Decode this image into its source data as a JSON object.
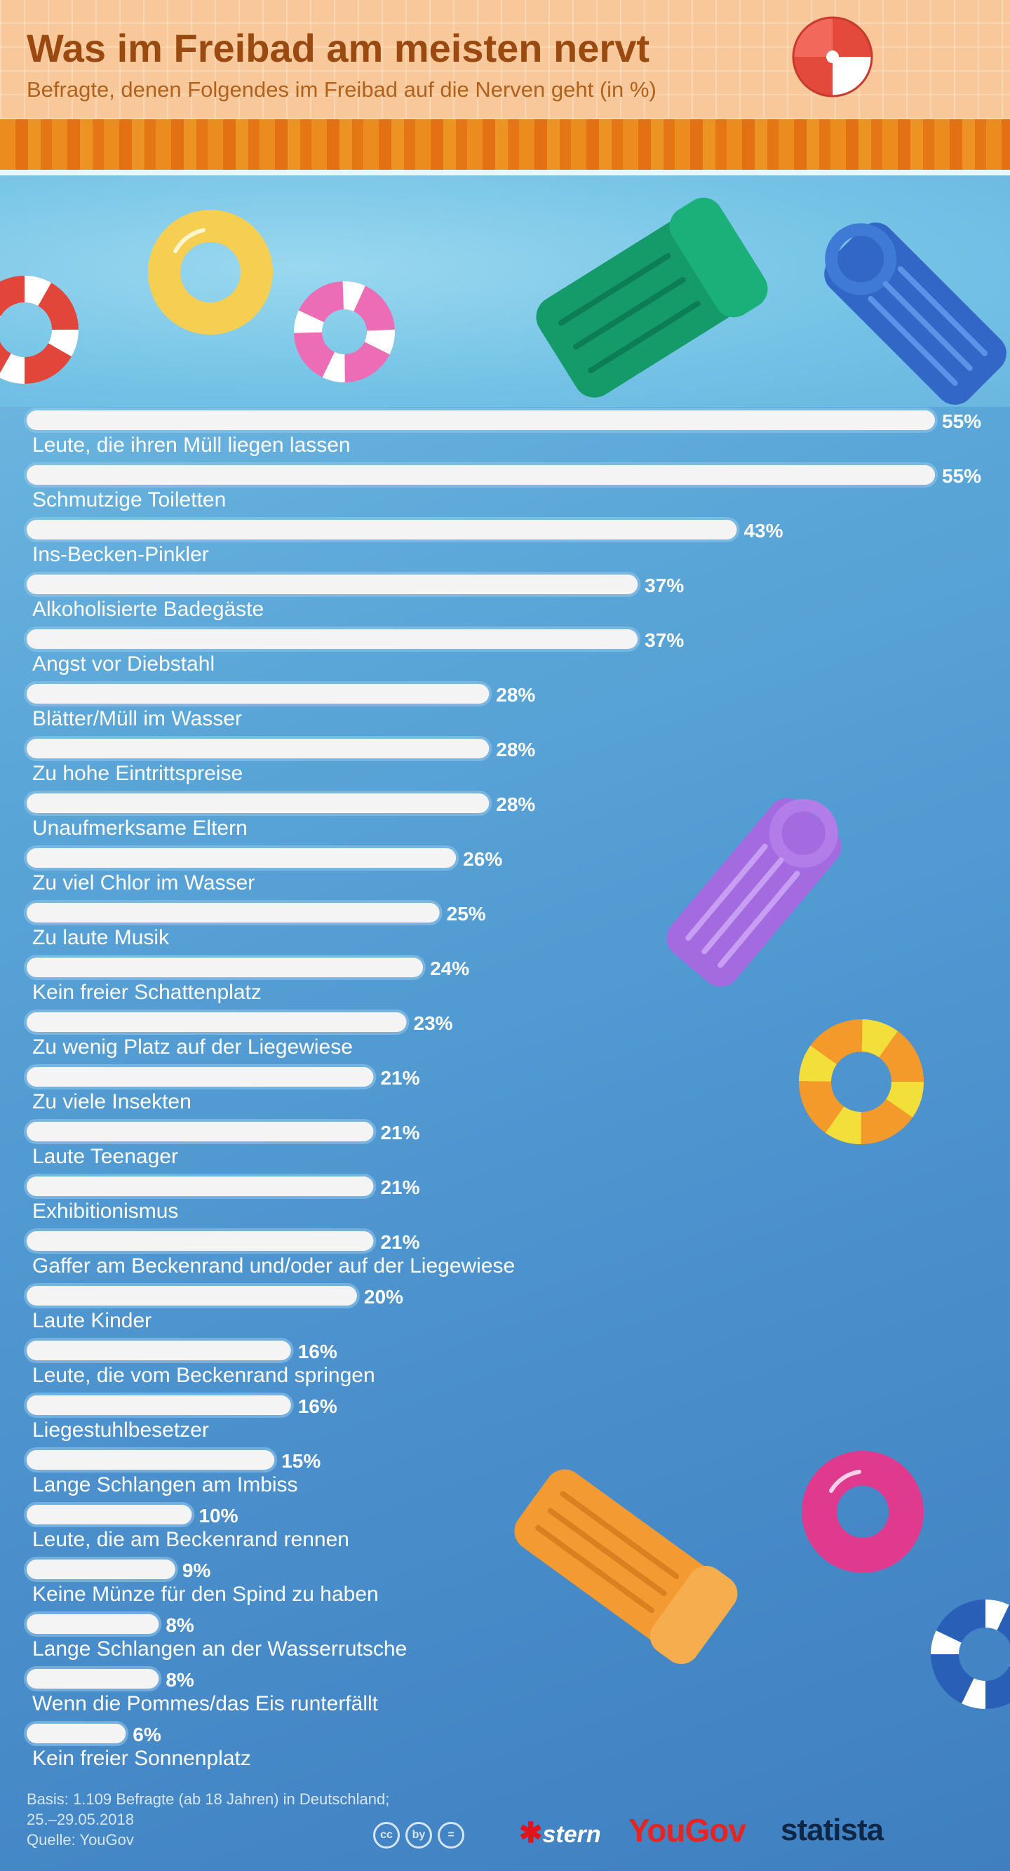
{
  "header": {
    "title": "Was im Freibad am meisten nervt",
    "subtitle": "Befragte, denen Folgendes im Freibad auf die Nerven geht (in %)"
  },
  "chart_data": {
    "type": "bar",
    "orientation": "horizontal",
    "title": "Was im Freibad am meisten nervt",
    "subtitle": "Befragte, denen Folgendes im Freibad auf die Nerven geht (in %)",
    "categories": [
      "Leute, die ihren Müll liegen lassen",
      "Schmutzige Toiletten",
      "Ins-Becken-Pinkler",
      "Alkoholisierte Badegäste",
      "Angst vor Diebstahl",
      "Blätter/Müll im Wasser",
      "Zu hohe Eintrittspreise",
      "Unaufmerksame Eltern",
      "Zu viel Chlor im Wasser",
      "Zu laute Musik",
      "Kein freier Schattenplatz",
      "Zu wenig Platz auf der Liegewiese",
      "Zu viele Insekten",
      "Laute Teenager",
      "Exhibitionismus",
      "Gaffer am Beckenrand und/oder auf der Liegewiese",
      "Laute Kinder",
      "Leute, die vom Beckenrand springen",
      "Liegestuhlbesetzer",
      "Lange Schlangen am Imbiss",
      "Leute, die am Beckenrand rennen",
      "Keine Münze für den Spind zu haben",
      "Lange Schlangen an der Wasserrutsche",
      "Wenn die Pommes/das Eis runterfällt",
      "Kein freier Sonnenplatz"
    ],
    "values": [
      55,
      55,
      43,
      37,
      37,
      28,
      28,
      28,
      26,
      25,
      24,
      23,
      21,
      21,
      21,
      21,
      20,
      16,
      16,
      15,
      10,
      9,
      8,
      8,
      6
    ],
    "value_labels": [
      "55%",
      "55%",
      "43%",
      "37%",
      "37%",
      "28%",
      "28%",
      "28%",
      "26%",
      "25%",
      "24%",
      "23%",
      "21%",
      "21%",
      "21%",
      "21%",
      "20%",
      "16%",
      "16%",
      "15%",
      "10%",
      "9%",
      "8%",
      "8%",
      "6%"
    ],
    "unit": "%",
    "xlim": [
      0,
      55
    ],
    "grid": false,
    "legend": "none",
    "bar_color": "#f4f4f4"
  },
  "footer": {
    "basis_line1": "Basis: 1.109 Befragte (ab 18 Jahren) in Deutschland;",
    "basis_line2": "25.–29.05.2018",
    "source": "Quelle: YouGov",
    "cc_icons": [
      "cc",
      "by",
      "="
    ]
  },
  "logos": {
    "stern": "stern",
    "yougov": "YouGov",
    "statista": "statista"
  },
  "colors": {
    "header_bg": "#f9c89a",
    "title": "#9a4a10",
    "subtitle": "#b0621d",
    "pool_top": "#7cc3e6",
    "pool_bottom": "#3f7fc0"
  }
}
